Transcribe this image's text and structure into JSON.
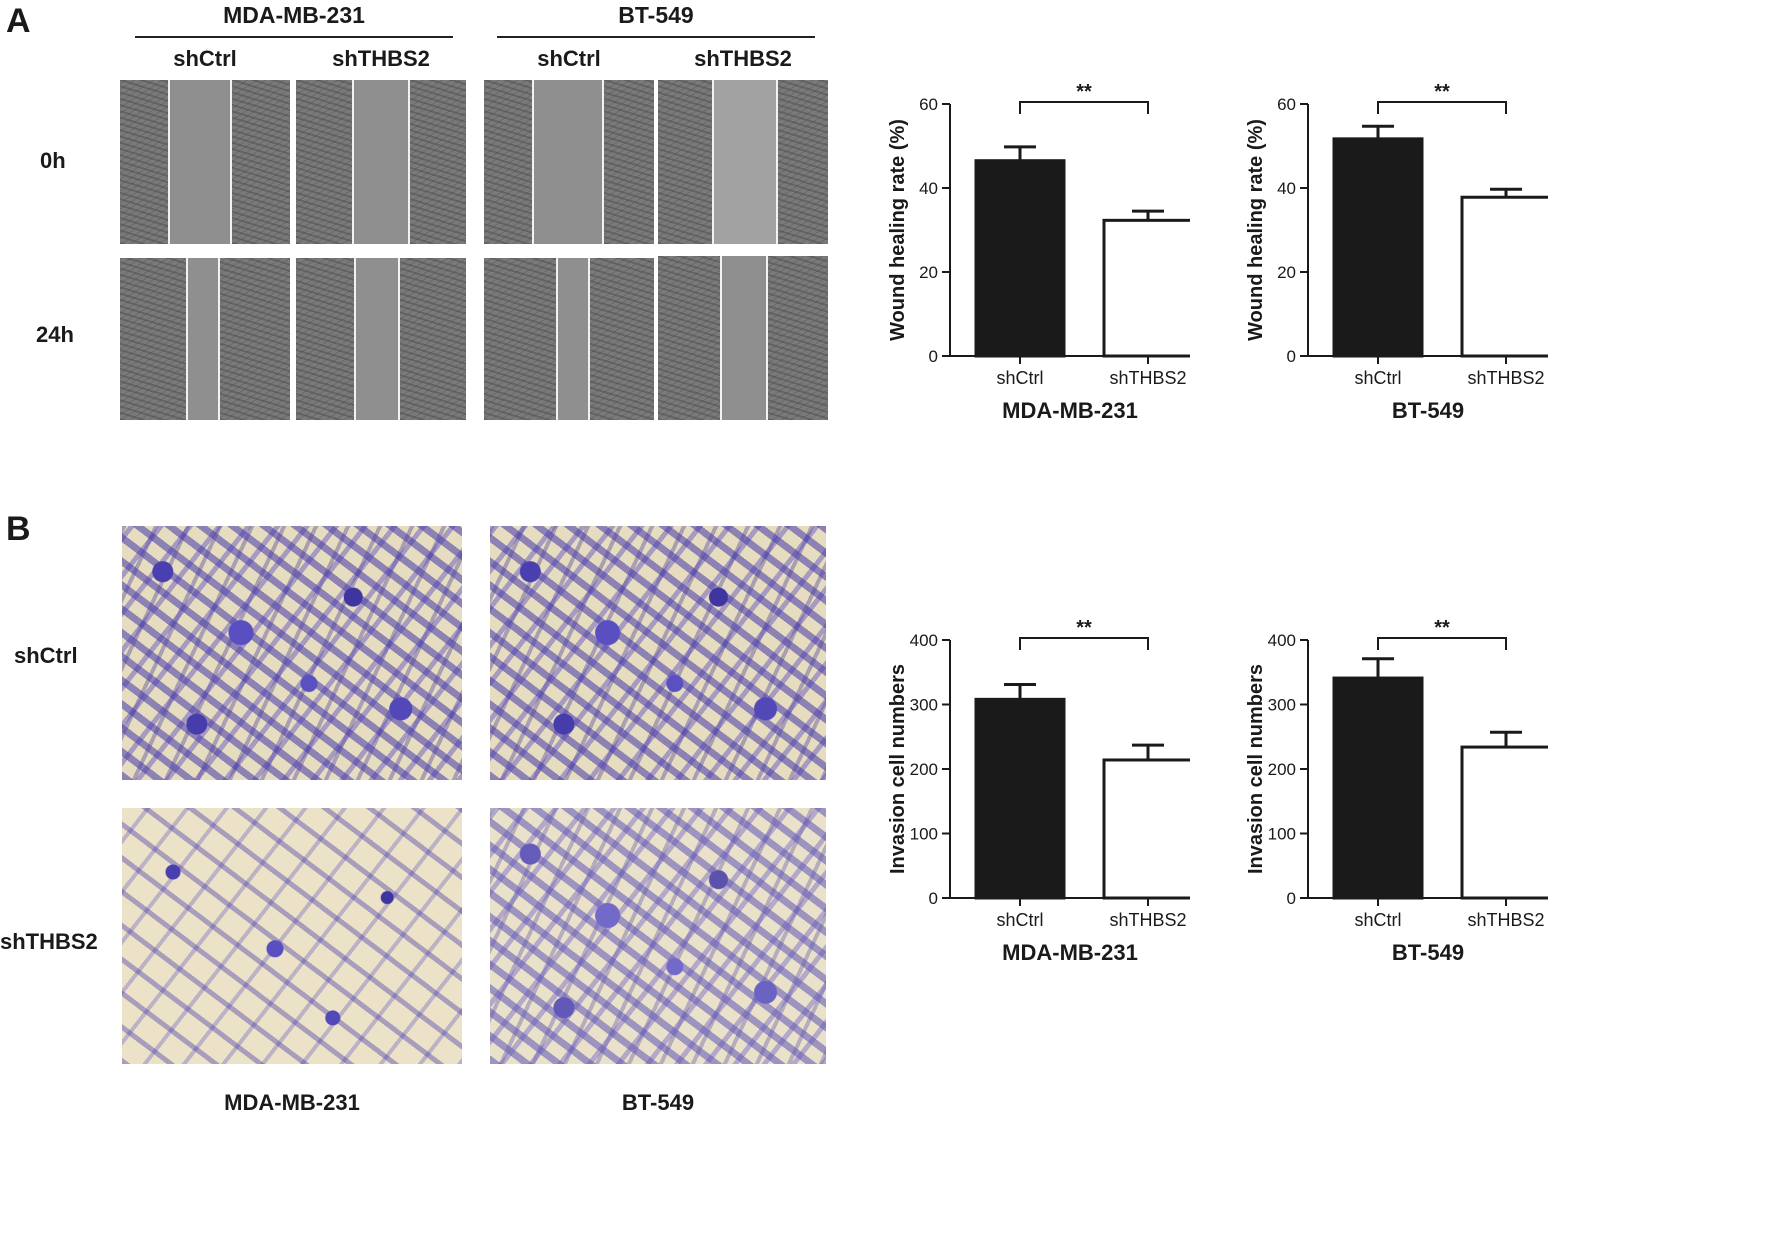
{
  "panel_a": {
    "letter": "A",
    "cell_lines": [
      "MDA-MB-231",
      "BT-549"
    ],
    "groups": [
      "shCtrl",
      "shTHBS2"
    ],
    "timepoints": [
      "0h",
      "24h"
    ]
  },
  "panel_b": {
    "letter": "B",
    "groups": [
      "shCtrl",
      "shTHBS2"
    ],
    "cell_lines": [
      "MDA-MB-231",
      "BT-549"
    ]
  },
  "chart_data": [
    {
      "type": "bar",
      "categories": [
        "shCtrl",
        "shTHBS2"
      ],
      "values": [
        46.5,
        32.3
      ],
      "errors": [
        3.3,
        2.2
      ],
      "ylabel": "Wound healing rate (%)",
      "xlabel": "MDA-MB-231",
      "ylim": [
        0,
        60
      ],
      "yticks": [
        0,
        20,
        40,
        60
      ],
      "significance": "**",
      "colors": [
        "#1a1a1a",
        "#ffffff"
      ]
    },
    {
      "type": "bar",
      "categories": [
        "shCtrl",
        "shTHBS2"
      ],
      "values": [
        51.7,
        37.8
      ],
      "errors": [
        3.0,
        1.9
      ],
      "ylabel": "Wound healing rate (%)",
      "xlabel": "BT-549",
      "ylim": [
        0,
        60
      ],
      "yticks": [
        0,
        20,
        40,
        60
      ],
      "significance": "**",
      "colors": [
        "#1a1a1a",
        "#ffffff"
      ]
    },
    {
      "type": "bar",
      "categories": [
        "shCtrl",
        "shTHBS2"
      ],
      "values": [
        308,
        214
      ],
      "errors": [
        23,
        23
      ],
      "ylabel": "Invasion cell numbers",
      "xlabel": "MDA-MB-231",
      "ylim": [
        0,
        400
      ],
      "yticks": [
        0,
        100,
        200,
        300,
        400
      ],
      "significance": "**",
      "colors": [
        "#1a1a1a",
        "#ffffff"
      ]
    },
    {
      "type": "bar",
      "categories": [
        "shCtrl",
        "shTHBS2"
      ],
      "values": [
        341,
        234
      ],
      "errors": [
        30,
        23
      ],
      "ylabel": "Invasion cell numbers",
      "xlabel": "BT-549",
      "ylim": [
        0,
        400
      ],
      "yticks": [
        0,
        100,
        200,
        300,
        400
      ],
      "significance": "**",
      "colors": [
        "#1a1a1a",
        "#ffffff"
      ]
    }
  ]
}
